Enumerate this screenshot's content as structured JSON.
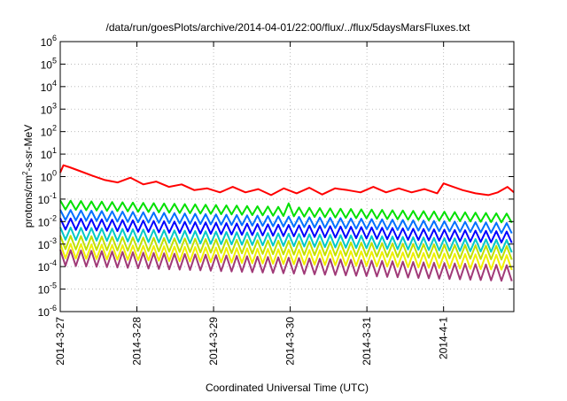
{
  "chart_data": {
    "type": "line",
    "title": "/data/run/goesPlots/archive/2014-04-01/22:00/flux/../flux/5daysMarsFluxes.txt",
    "xlabel": "Coordinated Universal Time (UTC)",
    "ylabel_parts": {
      "pre": "protons/cm",
      "sup": "2",
      "post": "-s-sr-MeV"
    },
    "x_scale": "time",
    "x_range": [
      "2014-03-27",
      "2014-04-01 22:00"
    ],
    "x_ticks": [
      "2014-3-27",
      "2014-3-28",
      "2014-3-29",
      "2014-3-30",
      "2014-3-31",
      "2014-4-1"
    ],
    "y_scale": "log",
    "ylim": [
      1e-06,
      1000000.0
    ],
    "y_ticks": [
      {
        "base": "10",
        "exp": "-6"
      },
      {
        "base": "10",
        "exp": "-5"
      },
      {
        "base": "10",
        "exp": "-4"
      },
      {
        "base": "10",
        "exp": "-3"
      },
      {
        "base": "10",
        "exp": "-2"
      },
      {
        "base": "10",
        "exp": "-1"
      },
      {
        "base": "10",
        "exp": "0"
      },
      {
        "base": "10",
        "exp": "1"
      },
      {
        "base": "10",
        "exp": "2"
      },
      {
        "base": "10",
        "exp": "3"
      },
      {
        "base": "10",
        "exp": "4"
      },
      {
        "base": "10",
        "exp": "5"
      },
      {
        "base": "10",
        "exp": "6"
      }
    ],
    "grid": true,
    "series": [
      {
        "color": "#ff0000",
        "x": [
          "2014-03-27 00:00",
          "2014-03-27 01:00",
          "2014-03-27 03:00",
          "2014-03-27 06:00",
          "2014-03-27 10:00",
          "2014-03-27 14:00",
          "2014-03-27 18:00",
          "2014-03-27 22:00",
          "2014-03-28 02:00",
          "2014-03-28 06:00",
          "2014-03-28 10:00",
          "2014-03-28 14:00",
          "2014-03-28 18:00",
          "2014-03-28 22:00",
          "2014-03-29 02:00",
          "2014-03-29 06:00",
          "2014-03-29 10:00",
          "2014-03-29 14:00",
          "2014-03-29 18:00",
          "2014-03-29 22:00",
          "2014-03-30 02:00",
          "2014-03-30 06:00",
          "2014-03-30 10:00",
          "2014-03-30 14:00",
          "2014-03-30 18:00",
          "2014-03-30 22:00",
          "2014-03-31 02:00",
          "2014-03-31 06:00",
          "2014-03-31 10:00",
          "2014-03-31 14:00",
          "2014-03-31 18:00",
          "2014-03-31 22:00",
          "2014-04-01 00:00",
          "2014-04-01 03:00",
          "2014-04-01 06:00",
          "2014-04-01 10:00",
          "2014-04-01 14:00",
          "2014-04-01 17:00",
          "2014-04-01 20:00",
          "2014-04-01 22:00"
        ],
        "y": [
          1.5,
          3.2,
          2.6,
          1.8,
          1.1,
          0.7,
          0.55,
          0.9,
          0.45,
          0.6,
          0.35,
          0.45,
          0.25,
          0.3,
          0.2,
          0.35,
          0.2,
          0.28,
          0.15,
          0.3,
          0.18,
          0.32,
          0.16,
          0.3,
          0.25,
          0.2,
          0.35,
          0.2,
          0.3,
          0.2,
          0.28,
          0.18,
          0.5,
          0.35,
          0.25,
          0.18,
          0.15,
          0.2,
          0.35,
          0.2
        ]
      },
      {
        "color": "#00e000",
        "x": [
          "2014-03-27 00:00",
          "2014-04-01 22:00"
        ],
        "y": [
          0.055,
          0.014
        ],
        "x_minor": [
          "2014-03-30 00:00"
        ],
        "y_minor": [
          0.065
        ]
      },
      {
        "color": "#0070ff",
        "x": [
          "2014-03-27 00:00",
          "2014-04-01 22:00"
        ],
        "y": [
          0.02,
          0.005
        ]
      },
      {
        "color": "#0000ff",
        "x": [
          "2014-03-27 00:00",
          "2014-04-01 22:00"
        ],
        "y": [
          0.008,
          0.002
        ]
      },
      {
        "color": "#00c8c8",
        "x": [
          "2014-03-27 00:00",
          "2014-04-01 22:00"
        ],
        "y": [
          0.003,
          0.0008
        ]
      },
      {
        "color": "#c0e000",
        "x": [
          "2014-03-27 00:00",
          "2014-04-01 22:00"
        ],
        "y": [
          0.0012,
          0.0004
        ]
      },
      {
        "color": "#f0f000",
        "x": [
          "2014-03-27 00:00",
          "2014-04-01 22:00"
        ],
        "y": [
          0.0005,
          0.00015
        ]
      },
      {
        "color": "#a03a78",
        "x": [
          "2014-03-27 00:00",
          "2014-04-01 22:00"
        ],
        "y": [
          0.00025,
          5e-05
        ]
      }
    ]
  }
}
